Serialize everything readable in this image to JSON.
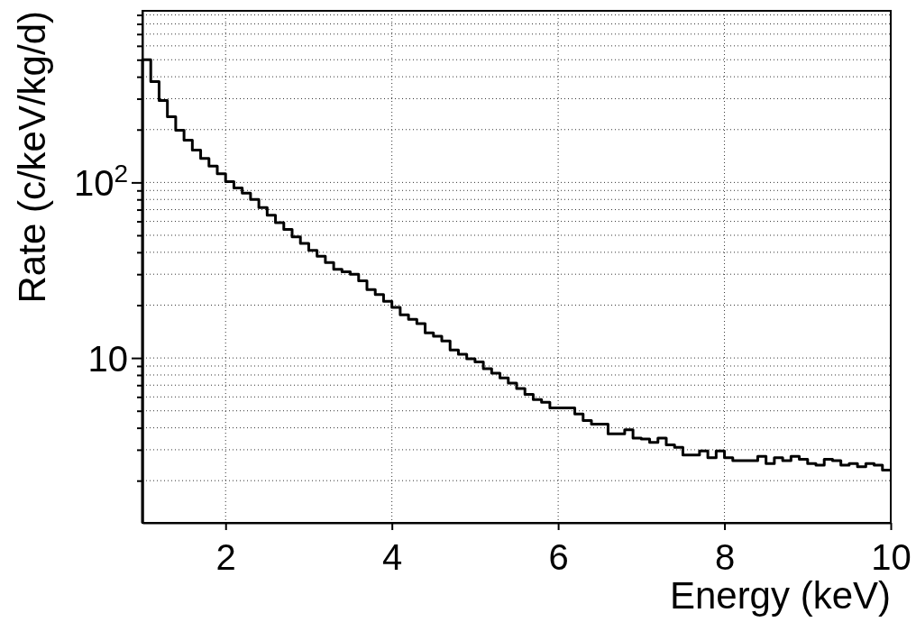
{
  "chart_data": {
    "type": "histogram",
    "xlabel": "Energy (keV)",
    "ylabel": "Rate (c/keV/kg/d)",
    "log": "y",
    "grid": true,
    "color": "#000000",
    "bins": [
      1.0,
      1.1,
      1.2,
      1.3,
      1.4,
      1.5,
      1.6,
      1.7,
      1.8,
      1.9,
      2.0,
      2.1,
      2.2,
      2.3,
      2.4,
      2.5,
      2.6,
      2.7,
      2.8,
      2.9,
      3.0,
      3.1,
      3.2,
      3.3,
      3.4,
      3.5,
      3.6,
      3.7,
      3.8,
      3.9,
      4.0,
      4.1,
      4.2,
      4.3,
      4.4,
      4.5,
      4.6,
      4.7,
      4.8,
      4.9,
      5.0,
      5.1,
      5.2,
      5.3,
      5.4,
      5.5,
      5.6,
      5.7,
      5.8,
      5.9,
      6.0,
      6.1,
      6.2,
      6.3,
      6.4,
      6.5,
      6.6,
      6.7,
      6.8,
      6.9,
      7.0,
      7.1,
      7.2,
      7.3,
      7.4,
      7.5,
      7.6,
      7.7,
      7.8,
      7.9,
      8.0,
      8.1,
      8.2,
      8.3,
      8.4,
      8.5,
      8.6,
      8.7,
      8.8,
      8.9,
      9.0,
      9.1,
      9.2,
      9.3,
      9.4,
      9.5,
      9.6,
      9.7,
      9.8,
      9.9,
      10.0
    ],
    "values": [
      500,
      375,
      293,
      237,
      198,
      174,
      153,
      137,
      124,
      112,
      101,
      93,
      87,
      80,
      72,
      65,
      59,
      54,
      49,
      45,
      41,
      38,
      35,
      32,
      31,
      30,
      27.5,
      24.5,
      23,
      21,
      19.4,
      17.6,
      16.6,
      15.7,
      13.9,
      13.3,
      12.5,
      11.1,
      10.5,
      9.9,
      9.5,
      8.7,
      8.2,
      7.7,
      7.2,
      6.7,
      6.2,
      5.8,
      5.6,
      5.2,
      5.2,
      5.2,
      4.8,
      4.4,
      4.2,
      4.2,
      3.7,
      3.7,
      3.9,
      3.5,
      3.45,
      3.3,
      3.5,
      3.2,
      3.1,
      2.8,
      2.8,
      2.95,
      2.7,
      2.95,
      2.7,
      2.6,
      2.6,
      2.6,
      2.75,
      2.5,
      2.7,
      2.6,
      2.75,
      2.65,
      2.5,
      2.45,
      2.65,
      2.6,
      2.45,
      2.5,
      2.4,
      2.5,
      2.45,
      2.3
    ],
    "xlim": [
      1,
      10
    ],
    "xticks": [
      2,
      4,
      6,
      8,
      10
    ],
    "ylim": [
      1.15,
      950
    ],
    "yticks": [
      {
        "value": 2,
        "label": null
      },
      {
        "value": 3,
        "label": null
      },
      {
        "value": 4,
        "label": null
      },
      {
        "value": 5,
        "label": null
      },
      {
        "value": 6,
        "label": null
      },
      {
        "value": 7,
        "label": null
      },
      {
        "value": 8,
        "label": null
      },
      {
        "value": 9,
        "label": null
      },
      {
        "value": 10,
        "label": "10"
      },
      {
        "value": 20,
        "label": null
      },
      {
        "value": 30,
        "label": null
      },
      {
        "value": 40,
        "label": null
      },
      {
        "value": 50,
        "label": null
      },
      {
        "value": 60,
        "label": null
      },
      {
        "value": 70,
        "label": null
      },
      {
        "value": 80,
        "label": null
      },
      {
        "value": 90,
        "label": null
      },
      {
        "value": 100,
        "label": "10$^{2}$"
      },
      {
        "value": 200,
        "label": null
      },
      {
        "value": 300,
        "label": null
      },
      {
        "value": 400,
        "label": null
      },
      {
        "value": 500,
        "label": null
      },
      {
        "value": 600,
        "label": null
      },
      {
        "value": 700,
        "label": null
      },
      {
        "value": 800,
        "label": null
      },
      {
        "value": 900,
        "label": null
      }
    ]
  }
}
